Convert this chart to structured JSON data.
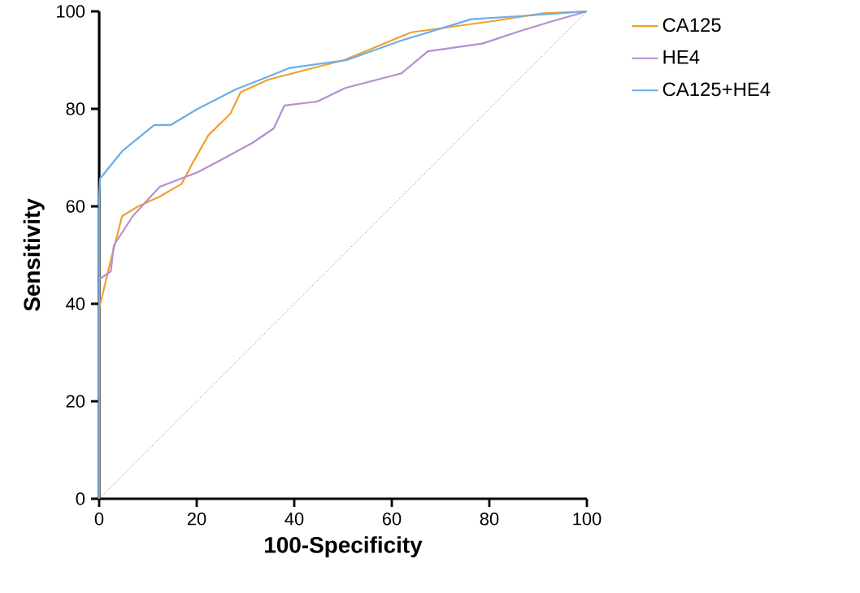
{
  "chart_data": {
    "type": "line",
    "xlabel": "100-Specificity",
    "ylabel": "Sensitivity",
    "xlim": [
      0,
      100
    ],
    "ylim": [
      0,
      100
    ],
    "xticks": [
      0,
      20,
      40,
      60,
      80,
      100
    ],
    "yticks": [
      0,
      20,
      40,
      60,
      80,
      100
    ],
    "grid": false,
    "legend": "top right",
    "marker": "none",
    "line_style": "solid",
    "series": [
      {
        "name": "CA125",
        "color": "#f0a030",
        "x": [
          0,
          0,
          2.4,
          4.7,
          8,
          12.4,
          16.9,
          19,
          22.4,
          26.9,
          29,
          34.7,
          42.4,
          50.2,
          64,
          80.7,
          91,
          100
        ],
        "values": [
          0,
          39,
          49,
          58,
          60,
          62,
          64.6,
          68.6,
          74.6,
          79,
          83.4,
          86,
          88,
          90,
          95.7,
          98,
          99.6,
          100
        ]
      },
      {
        "name": "HE4",
        "color": "#b58fd0",
        "x": [
          0,
          0,
          2.4,
          3,
          6.9,
          12.4,
          20.2,
          24,
          31.4,
          35.8,
          38,
          44.7,
          50.5,
          62,
          67.4,
          78.6,
          86.4,
          93,
          100
        ],
        "values": [
          0,
          45,
          46.7,
          52,
          58,
          64,
          67,
          69,
          73,
          76,
          80.7,
          81.5,
          84.3,
          87.3,
          91.8,
          93.4,
          96,
          98,
          100
        ]
      },
      {
        "name": "CA125+HE4",
        "color": "#6aaee8",
        "x": [
          0,
          0,
          0.2,
          4.7,
          11.3,
          14.7,
          20.2,
          24.7,
          28,
          32.4,
          39.1,
          50.7,
          61.9,
          76.3,
          85.9,
          100
        ],
        "values": [
          0,
          62,
          65.7,
          71.3,
          76.7,
          76.7,
          80,
          82.3,
          84,
          85.7,
          88.4,
          90,
          94,
          98.4,
          99,
          100
        ]
      },
      {
        "color": "#f08080",
        "line_style": "dotted",
        "x": [
          0,
          100
        ],
        "values": [
          0,
          100
        ]
      }
    ]
  }
}
